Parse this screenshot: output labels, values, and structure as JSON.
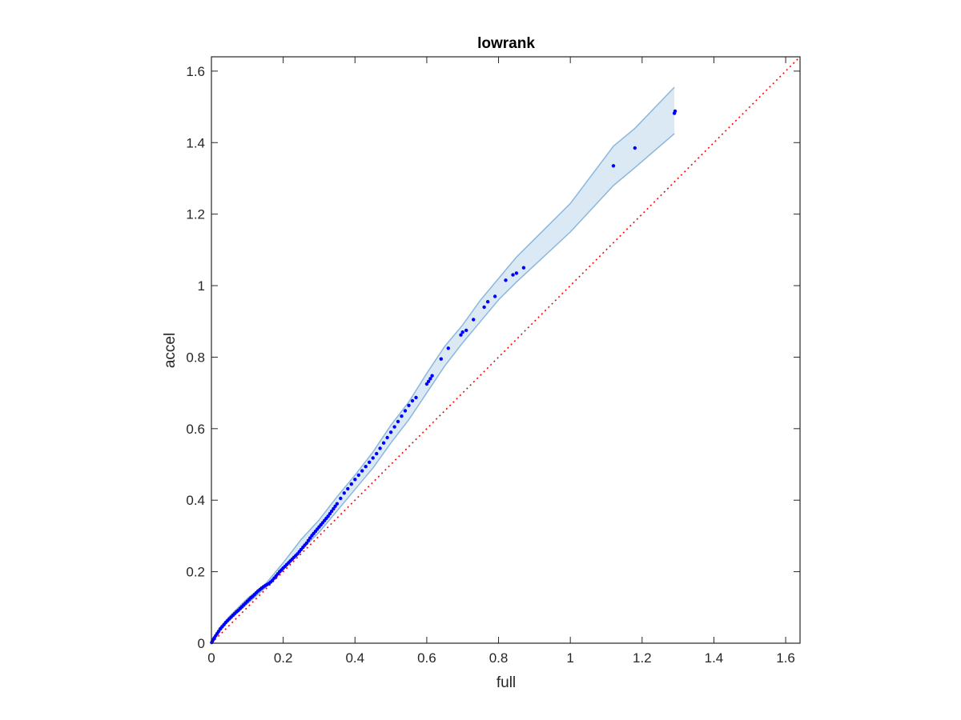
{
  "chart_data": {
    "type": "scatter",
    "title": "lowrank",
    "xlabel": "full",
    "ylabel": "accel",
    "xlim": [
      0,
      1.64
    ],
    "ylim": [
      0,
      1.64
    ],
    "xticks": [
      "0",
      "0.2",
      "0.4",
      "0.6",
      "0.8",
      "1",
      "1.2",
      "1.4",
      "1.6"
    ],
    "yticks": [
      "0",
      "0.2",
      "0.4",
      "0.6",
      "0.8",
      "1",
      "1.2",
      "1.4",
      "1.6"
    ],
    "grid": false,
    "reference_line": {
      "style": "dotted",
      "color": "#ff0000",
      "slope": 1
    },
    "band": {
      "color": "#4a90c8",
      "x": [
        0,
        0.02,
        0.05,
        0.1,
        0.15,
        0.2,
        0.25,
        0.3,
        0.35,
        0.4,
        0.45,
        0.5,
        0.55,
        0.6,
        0.65,
        0.7,
        0.75,
        0.8,
        0.85,
        1.0,
        1.12,
        1.18,
        1.29
      ],
      "upper": [
        0,
        0.04,
        0.075,
        0.125,
        0.165,
        0.225,
        0.29,
        0.345,
        0.41,
        0.47,
        0.535,
        0.61,
        0.675,
        0.755,
        0.83,
        0.89,
        0.96,
        1.02,
        1.08,
        1.23,
        1.39,
        1.44,
        1.555
      ],
      "lower": [
        0,
        0.03,
        0.065,
        0.11,
        0.155,
        0.205,
        0.26,
        0.31,
        0.37,
        0.43,
        0.49,
        0.56,
        0.625,
        0.7,
        0.775,
        0.84,
        0.9,
        0.96,
        1.01,
        1.15,
        1.28,
        1.33,
        1.425
      ]
    },
    "series": [
      {
        "color": "#0000ff",
        "points": [
          [
            0.001,
            0.002
          ],
          [
            0.003,
            0.006
          ],
          [
            0.005,
            0.01
          ],
          [
            0.008,
            0.015
          ],
          [
            0.012,
            0.021
          ],
          [
            0.016,
            0.027
          ],
          [
            0.02,
            0.033
          ],
          [
            0.025,
            0.04
          ],
          [
            0.03,
            0.046
          ],
          [
            0.035,
            0.052
          ],
          [
            0.04,
            0.058
          ],
          [
            0.045,
            0.063
          ],
          [
            0.05,
            0.068
          ],
          [
            0.055,
            0.073
          ],
          [
            0.06,
            0.078
          ],
          [
            0.065,
            0.083
          ],
          [
            0.07,
            0.088
          ],
          [
            0.075,
            0.092
          ],
          [
            0.08,
            0.097
          ],
          [
            0.085,
            0.102
          ],
          [
            0.09,
            0.107
          ],
          [
            0.095,
            0.112
          ],
          [
            0.1,
            0.117
          ],
          [
            0.105,
            0.122
          ],
          [
            0.11,
            0.127
          ],
          [
            0.115,
            0.131
          ],
          [
            0.12,
            0.136
          ],
          [
            0.125,
            0.141
          ],
          [
            0.13,
            0.146
          ],
          [
            0.135,
            0.15
          ],
          [
            0.14,
            0.154
          ],
          [
            0.145,
            0.158
          ],
          [
            0.15,
            0.161
          ],
          [
            0.155,
            0.164
          ],
          [
            0.16,
            0.167
          ],
          [
            0.165,
            0.171
          ],
          [
            0.17,
            0.176
          ],
          [
            0.175,
            0.182
          ],
          [
            0.18,
            0.188
          ],
          [
            0.185,
            0.194
          ],
          [
            0.19,
            0.2
          ],
          [
            0.195,
            0.205
          ],
          [
            0.2,
            0.21
          ],
          [
            0.205,
            0.215
          ],
          [
            0.21,
            0.22
          ],
          [
            0.215,
            0.225
          ],
          [
            0.22,
            0.23
          ],
          [
            0.225,
            0.235
          ],
          [
            0.23,
            0.24
          ],
          [
            0.235,
            0.245
          ],
          [
            0.24,
            0.25
          ],
          [
            0.245,
            0.256
          ],
          [
            0.25,
            0.262
          ],
          [
            0.255,
            0.268
          ],
          [
            0.26,
            0.274
          ],
          [
            0.265,
            0.28
          ],
          [
            0.27,
            0.287
          ],
          [
            0.275,
            0.294
          ],
          [
            0.28,
            0.301
          ],
          [
            0.285,
            0.307
          ],
          [
            0.29,
            0.313
          ],
          [
            0.295,
            0.319
          ],
          [
            0.3,
            0.325
          ],
          [
            0.305,
            0.331
          ],
          [
            0.31,
            0.337
          ],
          [
            0.315,
            0.343
          ],
          [
            0.32,
            0.349
          ],
          [
            0.325,
            0.355
          ],
          [
            0.33,
            0.362
          ],
          [
            0.335,
            0.369
          ],
          [
            0.34,
            0.376
          ],
          [
            0.345,
            0.383
          ],
          [
            0.35,
            0.39
          ],
          [
            0.36,
            0.405
          ],
          [
            0.37,
            0.42
          ],
          [
            0.38,
            0.432
          ],
          [
            0.39,
            0.445
          ],
          [
            0.4,
            0.458
          ],
          [
            0.41,
            0.47
          ],
          [
            0.42,
            0.482
          ],
          [
            0.43,
            0.494
          ],
          [
            0.44,
            0.506
          ],
          [
            0.45,
            0.518
          ],
          [
            0.46,
            0.53
          ],
          [
            0.47,
            0.545
          ],
          [
            0.48,
            0.56
          ],
          [
            0.49,
            0.575
          ],
          [
            0.5,
            0.59
          ],
          [
            0.51,
            0.605
          ],
          [
            0.52,
            0.62
          ],
          [
            0.53,
            0.635
          ],
          [
            0.54,
            0.65
          ],
          [
            0.55,
            0.665
          ],
          [
            0.56,
            0.678
          ],
          [
            0.57,
            0.687
          ],
          [
            0.6,
            0.725
          ],
          [
            0.605,
            0.732
          ],
          [
            0.61,
            0.74
          ],
          [
            0.615,
            0.748
          ],
          [
            0.64,
            0.795
          ],
          [
            0.66,
            0.825
          ],
          [
            0.695,
            0.862
          ],
          [
            0.7,
            0.87
          ],
          [
            0.71,
            0.875
          ],
          [
            0.73,
            0.905
          ],
          [
            0.76,
            0.94
          ],
          [
            0.77,
            0.955
          ],
          [
            0.79,
            0.97
          ],
          [
            0.82,
            1.015
          ],
          [
            0.84,
            1.03
          ],
          [
            0.85,
            1.035
          ],
          [
            0.87,
            1.05
          ],
          [
            1.12,
            1.335
          ],
          [
            1.18,
            1.385
          ],
          [
            1.29,
            1.482
          ],
          [
            1.292,
            1.488
          ]
        ]
      }
    ]
  }
}
